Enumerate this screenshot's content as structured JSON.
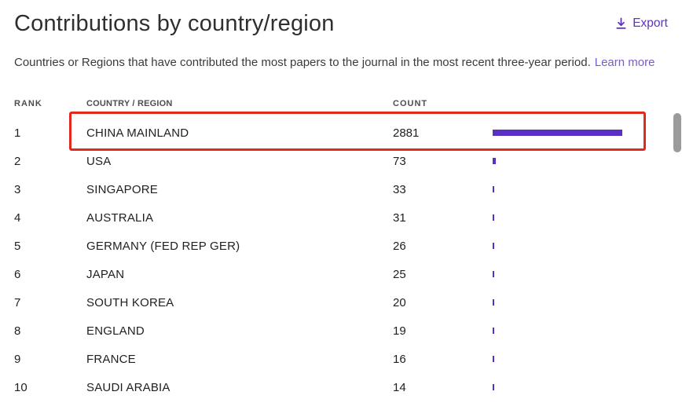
{
  "header": {
    "title": "Contributions by country/region",
    "export_label": "Export",
    "description": "Countries or Regions that have contributed the most papers to the journal in the most recent three-year period.",
    "learn_more_label": "Learn more"
  },
  "table": {
    "columns": [
      "RANK",
      "COUNTRY / REGION",
      "COUNT"
    ],
    "rows": [
      {
        "rank": 1,
        "country": "CHINA MAINLAND",
        "count": 2881,
        "highlighted": true
      },
      {
        "rank": 2,
        "country": "USA",
        "count": 73,
        "highlighted": false
      },
      {
        "rank": 3,
        "country": "SINGAPORE",
        "count": 33,
        "highlighted": false
      },
      {
        "rank": 4,
        "country": "AUSTRALIA",
        "count": 31,
        "highlighted": false
      },
      {
        "rank": 5,
        "country": "GERMANY (FED REP GER)",
        "count": 26,
        "highlighted": false
      },
      {
        "rank": 6,
        "country": "JAPAN",
        "count": 25,
        "highlighted": false
      },
      {
        "rank": 7,
        "country": "SOUTH KOREA",
        "count": 20,
        "highlighted": false
      },
      {
        "rank": 8,
        "country": "ENGLAND",
        "count": 19,
        "highlighted": false
      },
      {
        "rank": 9,
        "country": "FRANCE",
        "count": 16,
        "highlighted": false
      },
      {
        "rank": 10,
        "country": "SAUDI ARABIA",
        "count": 14,
        "highlighted": false
      }
    ]
  },
  "chart_data": {
    "type": "bar",
    "title": "Contributions by country/region",
    "categories": [
      "CHINA MAINLAND",
      "USA",
      "SINGAPORE",
      "AUSTRALIA",
      "GERMANY (FED REP GER)",
      "JAPAN",
      "SOUTH KOREA",
      "ENGLAND",
      "FRANCE",
      "SAUDI ARABIA"
    ],
    "values": [
      2881,
      73,
      33,
      31,
      26,
      25,
      20,
      19,
      16,
      14
    ],
    "xlabel": "COUNT",
    "ylabel": "COUNTRY / REGION",
    "xlim": [
      0,
      2881
    ],
    "legend": false,
    "orientation": "horizontal"
  },
  "colors": {
    "accent": "#5E33BF",
    "link": "#7B5BC9",
    "bar": "#5A2FC4",
    "highlight": "#E2291C",
    "scrollbar": "#9B9B9B"
  }
}
